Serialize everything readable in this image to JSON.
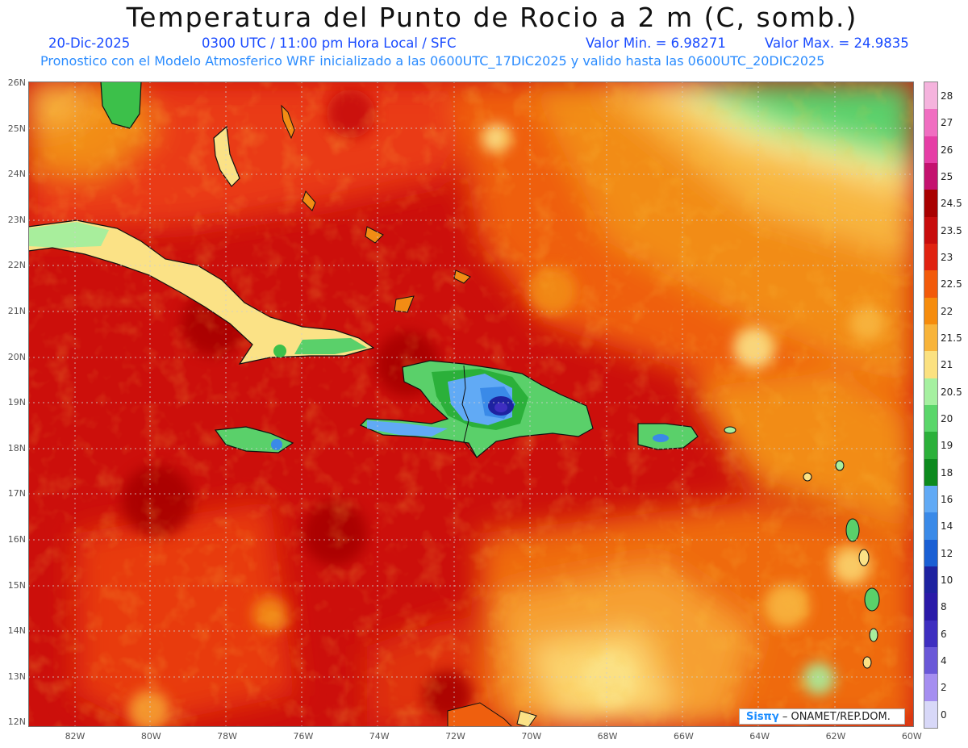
{
  "title": "Temperatura del Punto de Rocio a 2 m (C, somb.)",
  "info": {
    "date": "20-Dic-2025",
    "time": "0300 UTC / 11:00 pm Hora Local / SFC",
    "valor_min": "Valor Min. = 6.98271",
    "valor_max": "Valor Max. = 24.9835",
    "forecast": "Pronostico con el Modelo Atmosferico WRF inicializado a las 0600UTC_17DIC2025 y valido hasta las  0600UTC_20DIC2025"
  },
  "lat_labels": [
    "26N",
    "25N",
    "24N",
    "23N",
    "22N",
    "21N",
    "20N",
    "19N",
    "18N",
    "17N",
    "16N",
    "15N",
    "14N",
    "13N",
    "12N"
  ],
  "lon_labels": [
    "82W",
    "80W",
    "78W",
    "76W",
    "74W",
    "72W",
    "70W",
    "68W",
    "66W",
    "64W",
    "62W",
    "60W"
  ],
  "colorbar": {
    "levels": [
      "28",
      "27",
      "26",
      "25",
      "24.5",
      "23.5",
      "23",
      "22.5",
      "22",
      "21.5",
      "21",
      "20.5",
      "20",
      "19",
      "18",
      "16",
      "14",
      "12",
      "10",
      "8",
      "6",
      "4",
      "2",
      "0"
    ],
    "colors": [
      "#f5b3dd",
      "#f06ec1",
      "#e63ea6",
      "#c4126f",
      "#a80000",
      "#c80c0c",
      "#e02210",
      "#f25a0a",
      "#f68c0c",
      "#f8b43a",
      "#fbe180",
      "#a5f0a0",
      "#5ad66a",
      "#2bb03a",
      "#0c8a1e",
      "#61aaf5",
      "#3a8ae8",
      "#1a5fd4",
      "#1e22a0",
      "#2a1aa8",
      "#3e2ec0",
      "#6a58d8",
      "#a58ef0",
      "#d8d8f8"
    ]
  },
  "logo": {
    "brand": "Sisπγ",
    "text": "– ONAMET/REP.DOM."
  }
}
